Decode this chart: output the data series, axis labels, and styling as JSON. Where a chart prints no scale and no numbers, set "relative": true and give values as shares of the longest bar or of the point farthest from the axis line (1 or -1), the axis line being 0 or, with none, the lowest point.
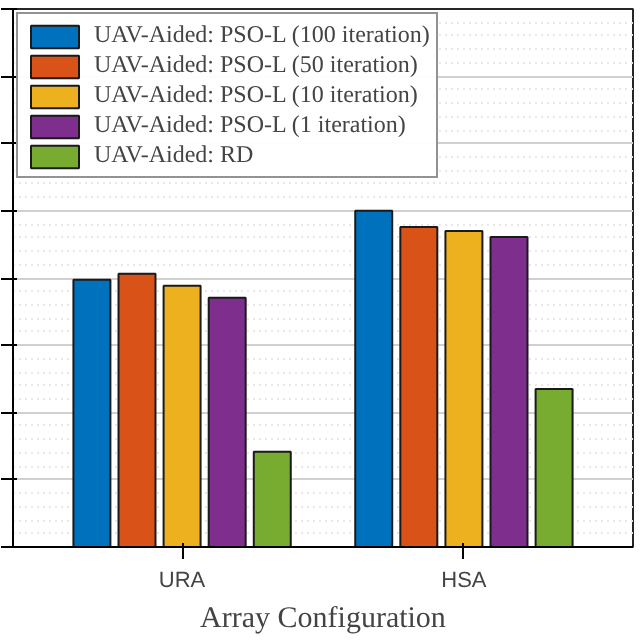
{
  "chart_data": {
    "type": "bar",
    "xlabel": "Array Configuration",
    "categories": [
      "URA",
      "HSA"
    ],
    "relative": true,
    "grid": "y",
    "legend": "top left",
    "series": [
      {
        "name": "UAV-Aided: PSO-L (100 iteration)",
        "color": "#0072bd",
        "values": [
          0.795,
          1.0
        ]
      },
      {
        "name": "UAV-Aided: PSO-L (50 iteration)",
        "color": "#d95319",
        "values": [
          0.813,
          0.952
        ]
      },
      {
        "name": "UAV-Aided: PSO-L (10 iteration)",
        "color": "#edb120",
        "values": [
          0.777,
          0.94
        ]
      },
      {
        "name": "UAV-Aided: PSO-L (1 iteration)",
        "color": "#7e2f8e",
        "values": [
          0.741,
          0.922
        ]
      },
      {
        "name": "UAV-Aided: RD",
        "color": "#77ac30",
        "values": [
          0.283,
          0.47
        ]
      }
    ]
  }
}
